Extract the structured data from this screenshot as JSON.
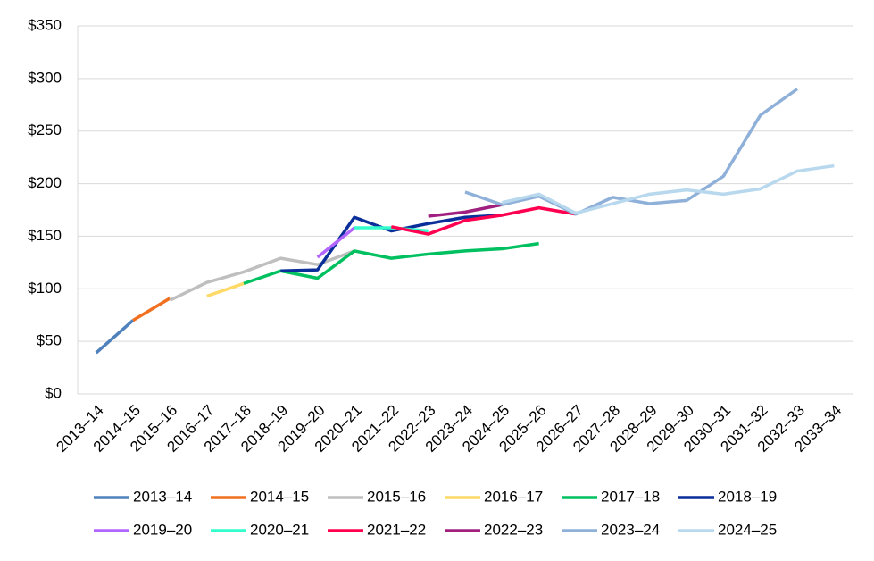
{
  "chart_data": {
    "type": "line",
    "categories": [
      "2013–14",
      "2014–15",
      "2015–16",
      "2016–17",
      "2017–18",
      "2018–19",
      "2019–20",
      "2020–21",
      "2021–22",
      "2022–23",
      "2023–24",
      "2024–25",
      "2025–26",
      "2026–27",
      "2027–28",
      "2028–29",
      "2029–30",
      "2030–31",
      "2031–32",
      "2032–33",
      "2033–34"
    ],
    "ylim": [
      0,
      350
    ],
    "yticks": [
      {
        "value": 0,
        "label": "$0"
      },
      {
        "value": 50,
        "label": "$50"
      },
      {
        "value": 100,
        "label": "$100"
      },
      {
        "value": 150,
        "label": "$150"
      },
      {
        "value": 200,
        "label": "$200"
      },
      {
        "value": 250,
        "label": "$250"
      },
      {
        "value": 300,
        "label": "$300"
      },
      {
        "value": 350,
        "label": "$350"
      }
    ],
    "grid": true,
    "series": [
      {
        "name": "2013–14",
        "color": "#4f81bd",
        "values": [
          39,
          70,
          null,
          null,
          null,
          null,
          null,
          null,
          null,
          null,
          null,
          null,
          null,
          null,
          null,
          null,
          null,
          null,
          null,
          null,
          null
        ]
      },
      {
        "name": "2014–15",
        "color": "#f07020",
        "values": [
          null,
          70,
          91,
          null,
          null,
          null,
          null,
          null,
          null,
          null,
          null,
          null,
          null,
          null,
          null,
          null,
          null,
          null,
          null,
          null,
          null
        ]
      },
      {
        "name": "2015–16",
        "color": "#bfbfbf",
        "values": [
          null,
          null,
          89,
          106,
          116,
          129,
          123,
          136,
          null,
          null,
          null,
          null,
          null,
          null,
          null,
          null,
          null,
          null,
          null,
          null,
          null
        ]
      },
      {
        "name": "2016–17",
        "color": "#ffd966",
        "values": [
          null,
          null,
          null,
          93,
          105,
          null,
          null,
          null,
          null,
          null,
          null,
          null,
          null,
          null,
          null,
          null,
          null,
          null,
          null,
          null,
          null
        ]
      },
      {
        "name": "2017–18",
        "color": "#00c060",
        "values": [
          null,
          null,
          null,
          null,
          105,
          117,
          110,
          136,
          129,
          133,
          136,
          138,
          143,
          null,
          null,
          null,
          null,
          null,
          null,
          null,
          null
        ]
      },
      {
        "name": "2018–19",
        "color": "#0a2f9a",
        "values": [
          null,
          null,
          null,
          null,
          null,
          117,
          118,
          168,
          155,
          162,
          168,
          170,
          null,
          null,
          null,
          null,
          null,
          null,
          null,
          null,
          null
        ]
      },
      {
        "name": "2019–20",
        "color": "#b266ff",
        "values": [
          null,
          null,
          null,
          null,
          null,
          null,
          130,
          158,
          null,
          null,
          null,
          null,
          null,
          null,
          null,
          null,
          null,
          null,
          null,
          null,
          null
        ]
      },
      {
        "name": "2020–21",
        "color": "#33ffcc",
        "values": [
          null,
          null,
          null,
          null,
          null,
          null,
          null,
          158,
          158,
          155,
          null,
          null,
          null,
          null,
          null,
          null,
          null,
          null,
          null,
          null,
          null
        ]
      },
      {
        "name": "2021–22",
        "color": "#ff0050",
        "values": [
          null,
          null,
          null,
          null,
          null,
          null,
          null,
          null,
          159,
          152,
          165,
          170,
          177,
          171,
          null,
          null,
          null,
          null,
          null,
          null,
          null
        ]
      },
      {
        "name": "2022–23",
        "color": "#a02080",
        "values": [
          null,
          null,
          null,
          null,
          null,
          null,
          null,
          null,
          null,
          169,
          173,
          180,
          null,
          null,
          null,
          null,
          null,
          null,
          null,
          null,
          null
        ]
      },
      {
        "name": "2023–24",
        "color": "#8fb0d8",
        "values": [
          null,
          null,
          null,
          null,
          null,
          null,
          null,
          null,
          null,
          null,
          192,
          180,
          188,
          171,
          187,
          181,
          184,
          207,
          265,
          290,
          null
        ]
      },
      {
        "name": "2024–25",
        "color": "#b8d8ee",
        "values": [
          null,
          null,
          null,
          null,
          null,
          null,
          null,
          null,
          null,
          null,
          null,
          182,
          190,
          172,
          181,
          190,
          194,
          190,
          195,
          212,
          217
        ]
      }
    ]
  }
}
